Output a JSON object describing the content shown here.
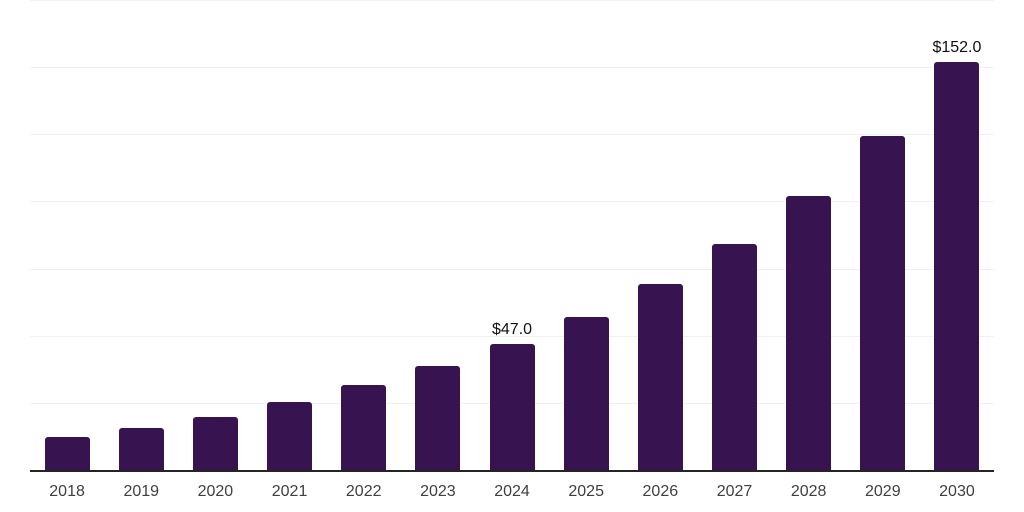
{
  "chart_data": {
    "type": "bar",
    "title": "",
    "xlabel": "",
    "ylabel": "",
    "categories": [
      "2018",
      "2019",
      "2020",
      "2021",
      "2022",
      "2023",
      "2024",
      "2025",
      "2026",
      "2027",
      "2028",
      "2029",
      "2030"
    ],
    "values": [
      12.2,
      15.7,
      19.9,
      25.2,
      31.8,
      38.8,
      47.0,
      57.1,
      69.4,
      84.2,
      102.2,
      124.3,
      152.0
    ],
    "point_labels": [
      "",
      "",
      "",
      "",
      "",
      "",
      "$47.0",
      "",
      "",
      "",
      "",
      "",
      "$152.0"
    ],
    "ylim": [
      0,
      175
    ],
    "gridline_values": [
      25,
      50,
      75,
      100,
      125,
      150,
      175
    ],
    "grid": "horizontal",
    "legend": "none"
  },
  "colors": {
    "background": "#ffffff",
    "bar": "#371450",
    "axis": "#242424",
    "gridline": "#f1f1f1",
    "tick_label": "#3f3f3f",
    "value_label": "#111111"
  }
}
